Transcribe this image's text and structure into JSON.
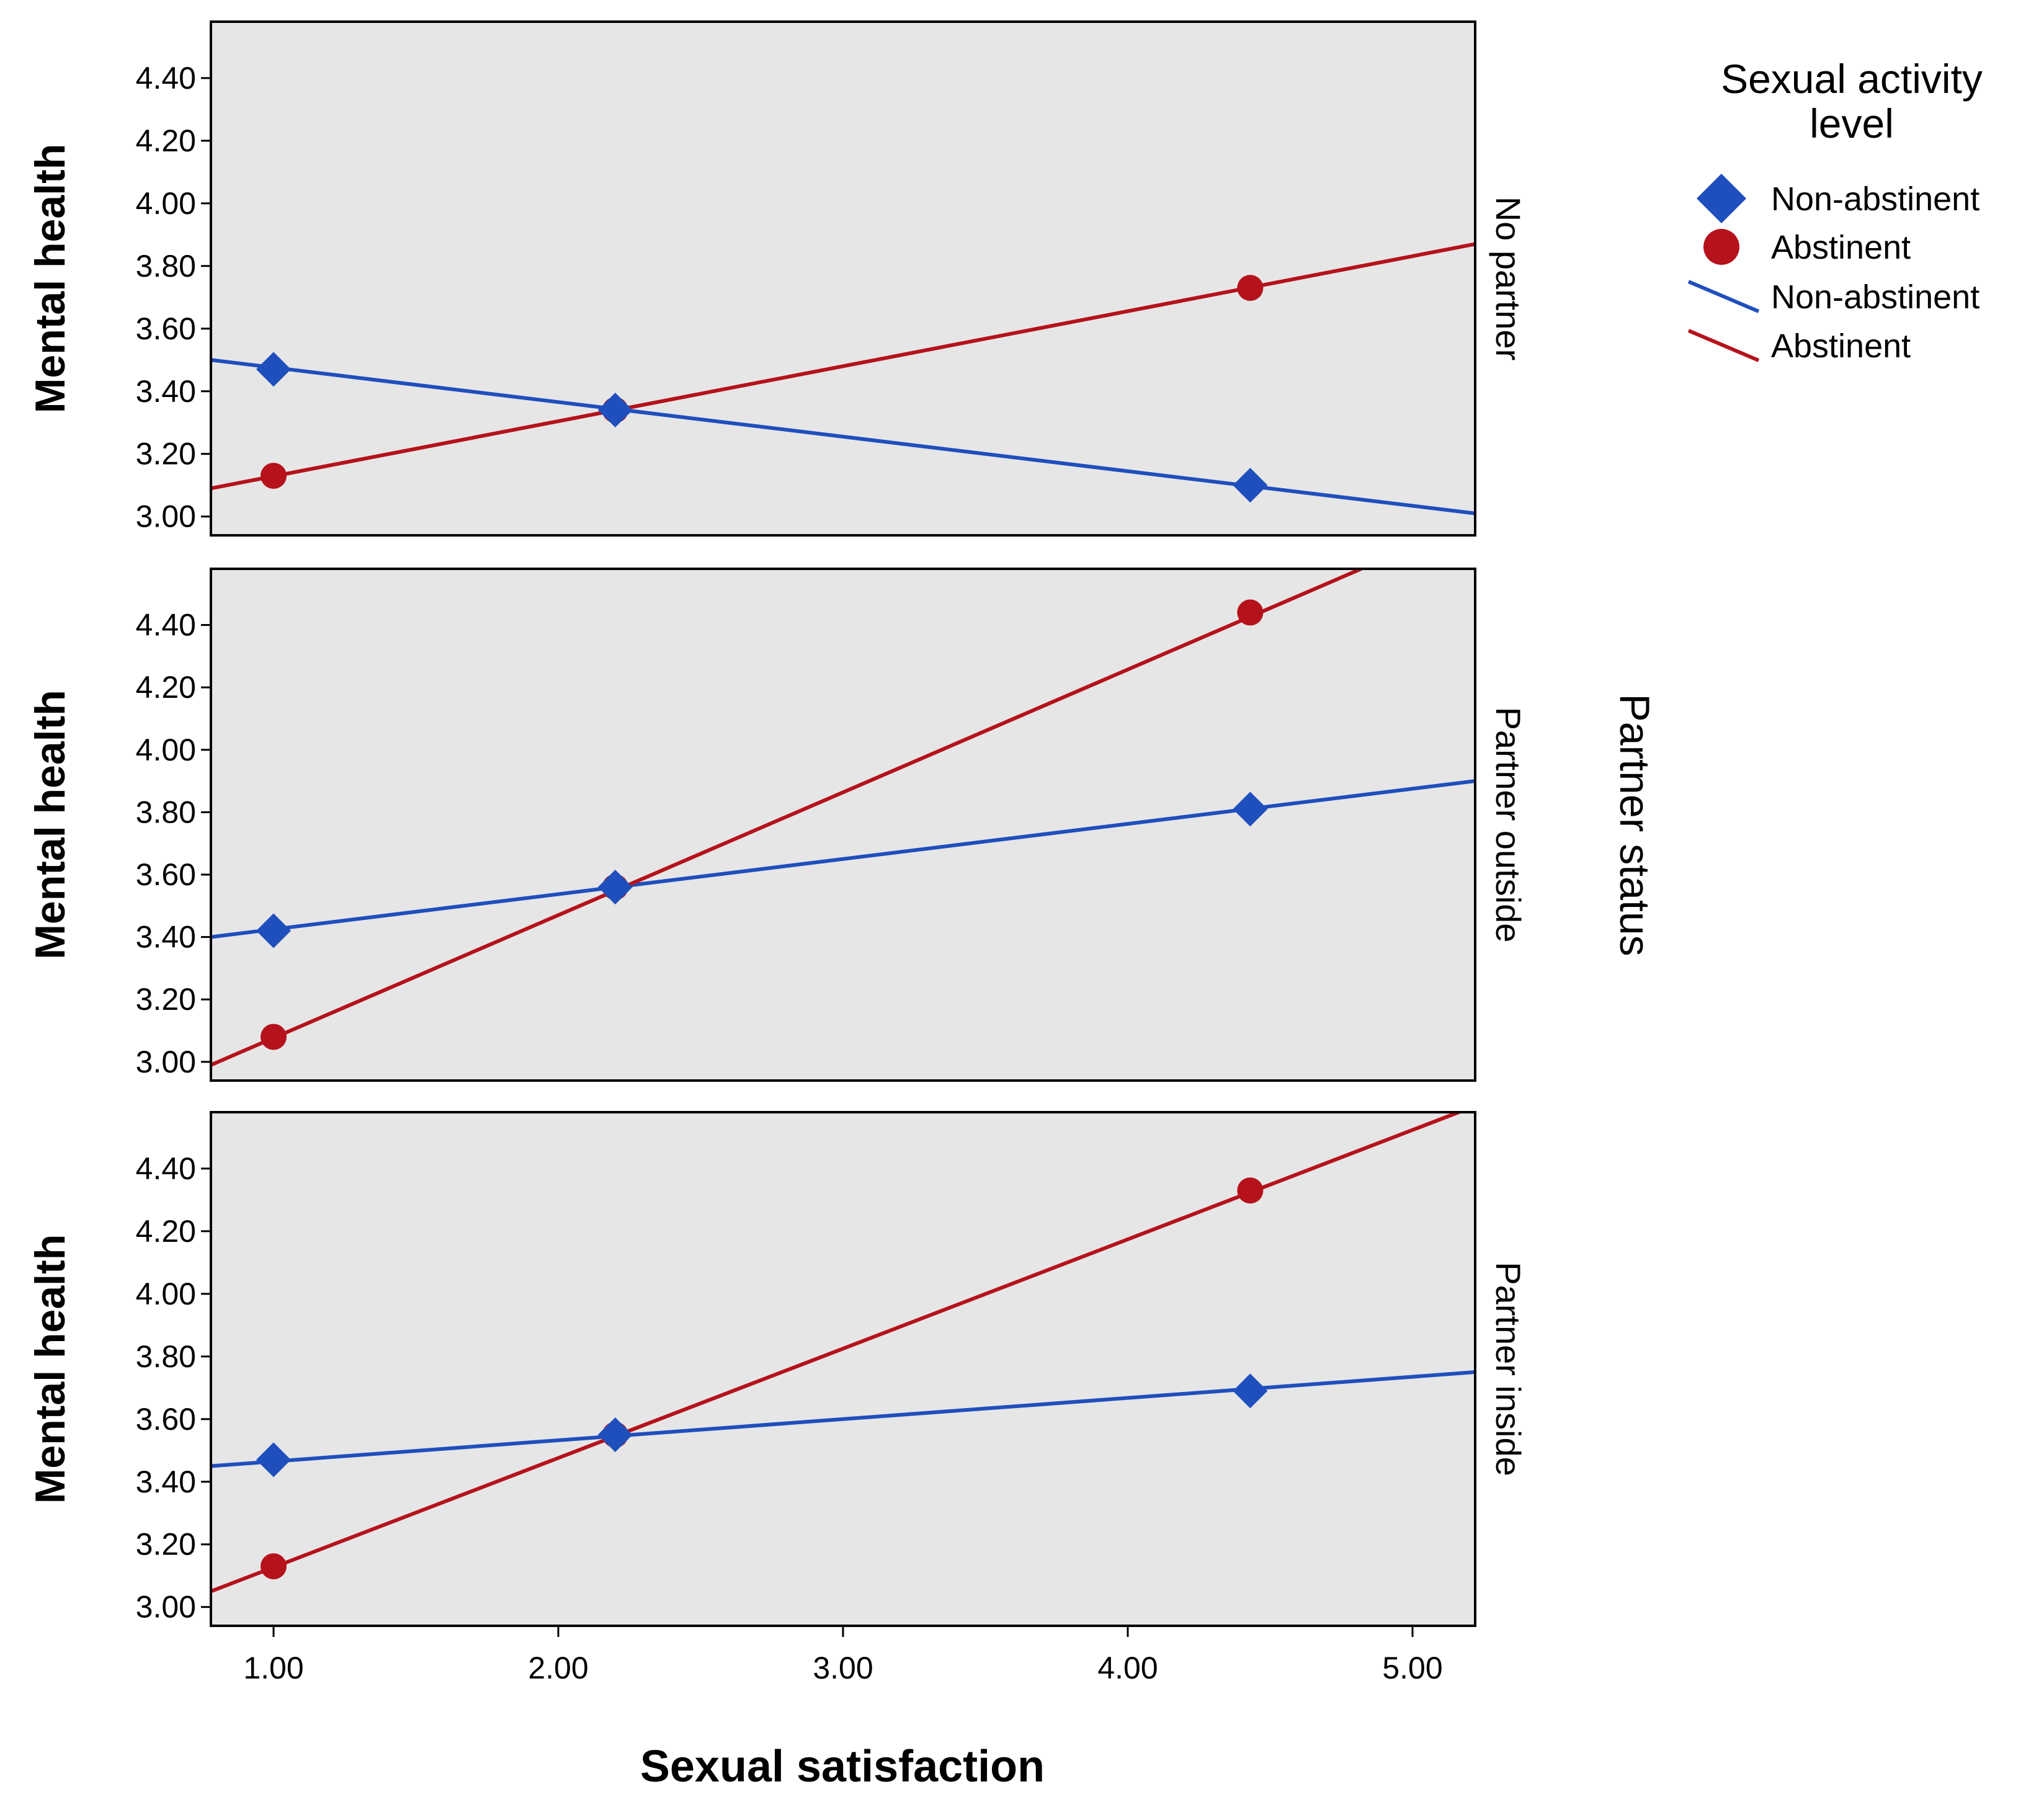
{
  "chart_data": {
    "type": "line",
    "xlabel": "Sexual satisfaction",
    "ylabel": "Mental health",
    "facet_label": "Partner status",
    "xlim": [
      0.78,
      5.22
    ],
    "ylim": [
      2.94,
      4.58
    ],
    "x_ticks": [
      1.0,
      2.0,
      3.0,
      4.0,
      5.0
    ],
    "x_tick_labels": [
      "1.00",
      "2.00",
      "3.00",
      "4.00",
      "5.00"
    ],
    "y_ticks": [
      3.0,
      3.2,
      3.4,
      3.6,
      3.8,
      4.0,
      4.2,
      4.4
    ],
    "y_tick_labels": [
      "3.00",
      "3.20",
      "3.40",
      "3.60",
      "3.80",
      "4.00",
      "4.20",
      "4.40"
    ],
    "legend": {
      "title": "Sexual activity level",
      "position": "top-right",
      "items": [
        {
          "label": "Non-abstinent",
          "kind": "marker",
          "symbol": "diamond",
          "color": "#1f4fbd"
        },
        {
          "label": "Abstinent",
          "kind": "marker",
          "symbol": "circle",
          "color": "#b5121b"
        },
        {
          "label": "Non-abstinent",
          "kind": "line",
          "color": "#1f4fbd"
        },
        {
          "label": "Abstinent",
          "kind": "line",
          "color": "#b5121b"
        }
      ]
    },
    "panels": [
      {
        "label": "No partner",
        "series": [
          {
            "name": "Non-abstinent",
            "color": "#1f4fbd",
            "marker": "diamond",
            "points": [
              {
                "x": 1.0,
                "y": 3.47
              },
              {
                "x": 2.2,
                "y": 3.34
              },
              {
                "x": 4.43,
                "y": 3.1
              }
            ],
            "fit": [
              {
                "x": 0.78,
                "y": 3.5
              },
              {
                "x": 5.22,
                "y": 3.01
              }
            ]
          },
          {
            "name": "Abstinent",
            "color": "#b5121b",
            "marker": "circle",
            "points": [
              {
                "x": 1.0,
                "y": 3.13
              },
              {
                "x": 2.2,
                "y": 3.34
              },
              {
                "x": 4.43,
                "y": 3.73
              }
            ],
            "fit": [
              {
                "x": 0.78,
                "y": 3.09
              },
              {
                "x": 5.22,
                "y": 3.87
              }
            ]
          }
        ]
      },
      {
        "label": "Partner outside",
        "series": [
          {
            "name": "Non-abstinent",
            "color": "#1f4fbd",
            "marker": "diamond",
            "points": [
              {
                "x": 1.0,
                "y": 3.42
              },
              {
                "x": 2.2,
                "y": 3.56
              },
              {
                "x": 4.43,
                "y": 3.81
              }
            ],
            "fit": [
              {
                "x": 0.78,
                "y": 3.4
              },
              {
                "x": 5.22,
                "y": 3.9
              }
            ]
          },
          {
            "name": "Abstinent",
            "color": "#b5121b",
            "marker": "circle",
            "points": [
              {
                "x": 1.0,
                "y": 3.08
              },
              {
                "x": 2.2,
                "y": 3.56
              },
              {
                "x": 4.43,
                "y": 4.44
              }
            ],
            "fit": [
              {
                "x": 0.78,
                "y": 2.99
              },
              {
                "x": 4.82,
                "y": 4.58
              }
            ]
          }
        ]
      },
      {
        "label": "Partner inside",
        "series": [
          {
            "name": "Non-abstinent",
            "color": "#1f4fbd",
            "marker": "diamond",
            "points": [
              {
                "x": 1.0,
                "y": 3.47
              },
              {
                "x": 2.2,
                "y": 3.55
              },
              {
                "x": 4.43,
                "y": 3.69
              }
            ],
            "fit": [
              {
                "x": 0.78,
                "y": 3.45
              },
              {
                "x": 5.22,
                "y": 3.75
              }
            ]
          },
          {
            "name": "Abstinent",
            "color": "#b5121b",
            "marker": "circle",
            "points": [
              {
                "x": 1.0,
                "y": 3.13
              },
              {
                "x": 2.2,
                "y": 3.55
              },
              {
                "x": 4.43,
                "y": 4.33
              }
            ],
            "fit": [
              {
                "x": 0.78,
                "y": 3.05
              },
              {
                "x": 5.22,
                "y": 4.6
              }
            ]
          }
        ]
      }
    ]
  }
}
